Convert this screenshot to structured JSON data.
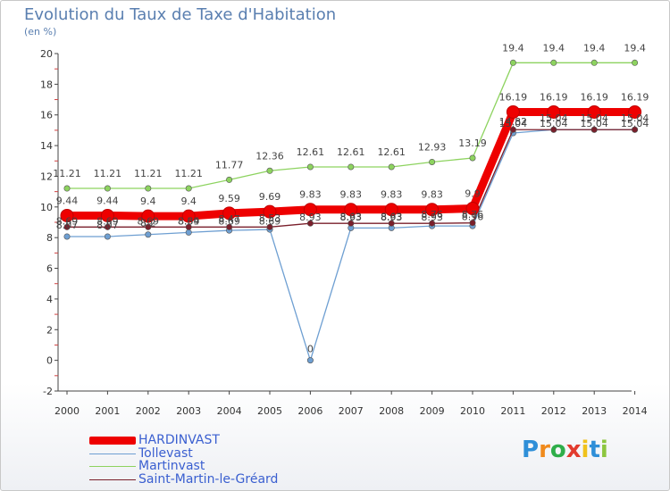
{
  "title": "Evolution du Taux de Taxe d'Habitation",
  "unit_label": "(en %)",
  "brand": "Proxiti",
  "chart_data": {
    "type": "line",
    "title": "Evolution du Taux de Taxe d'Habitation",
    "ylabel": "(en %)",
    "xlabel": "",
    "ylim": [
      -2,
      20
    ],
    "yticks": [
      -2,
      0,
      2,
      4,
      6,
      8,
      10,
      12,
      14,
      16,
      18,
      20
    ],
    "grid": false,
    "legend_position": "bottom-left",
    "x": [
      "2000",
      "2001",
      "2002",
      "2003",
      "2004",
      "2005",
      "2006",
      "2007",
      "2008",
      "2009",
      "2010",
      "2011",
      "2012",
      "2013",
      "2014"
    ],
    "series": [
      {
        "name": "Martinvast",
        "color": "#8dd35f",
        "values": [
          11.21,
          11.21,
          11.21,
          11.21,
          11.77,
          12.36,
          12.61,
          12.61,
          12.61,
          12.93,
          13.19,
          19.4,
          19.4,
          19.4,
          19.4
        ],
        "labels": [
          "11.21",
          "11.21",
          "11.21",
          "11.21",
          "11.77",
          "12.36",
          "12.61",
          "12.61",
          "12.61",
          "12.93",
          "13.19",
          "19.4",
          "19.4",
          "19.4",
          "19.4"
        ]
      },
      {
        "name": "Tollevast",
        "color": "#6e9fd2",
        "values": [
          8.07,
          8.07,
          8.2,
          8.34,
          8.47,
          8.53,
          0,
          8.63,
          8.63,
          8.76,
          8.76,
          14.82,
          15.04,
          15.04,
          15.04
        ],
        "labels": [
          "8.07",
          "8.07",
          "8.2",
          "8.34",
          "8.47",
          "8.53",
          "0",
          "8.63",
          "8.63",
          "8.76",
          "8.76",
          "14.82",
          "15.04",
          "15.04",
          "15.04"
        ]
      },
      {
        "name": "Saint-Martin-le-Gréard",
        "color": "#7a1f2b",
        "values": [
          8.69,
          8.69,
          8.69,
          8.69,
          8.69,
          8.69,
          8.93,
          8.93,
          8.93,
          8.93,
          8.96,
          15.04,
          15.04,
          15.04,
          15.04
        ],
        "labels": [
          "8.69",
          "8.69",
          "8.69",
          "8.69",
          "8.69",
          "8.69",
          "8.93",
          "8.93",
          "8.93",
          "8.93",
          "8.96",
          "15.04",
          "15.04",
          "15.04",
          "15.04"
        ]
      },
      {
        "name": "HARDINVAST",
        "color": "#ee0000",
        "values": [
          9.44,
          9.44,
          9.4,
          9.4,
          9.59,
          9.69,
          9.83,
          9.83,
          9.83,
          9.83,
          9.9,
          16.19,
          16.19,
          16.19,
          16.19
        ],
        "labels": [
          "9.44",
          "9.44",
          "9.4",
          "9.4",
          "9.59",
          "9.69",
          "9.83",
          "9.83",
          "9.83",
          "9.83",
          "9.9",
          "16.19",
          "16.19",
          "16.19",
          "16.19"
        ]
      }
    ]
  },
  "legend": [
    {
      "name": "HARDINVAST",
      "color": "#ee0000"
    },
    {
      "name": "Tollevast",
      "color": "#6e9fd2"
    },
    {
      "name": "Martinvast",
      "color": "#8dd35f"
    },
    {
      "name": "Saint-Martin-le-Gréard",
      "color": "#7a1f2b"
    }
  ]
}
